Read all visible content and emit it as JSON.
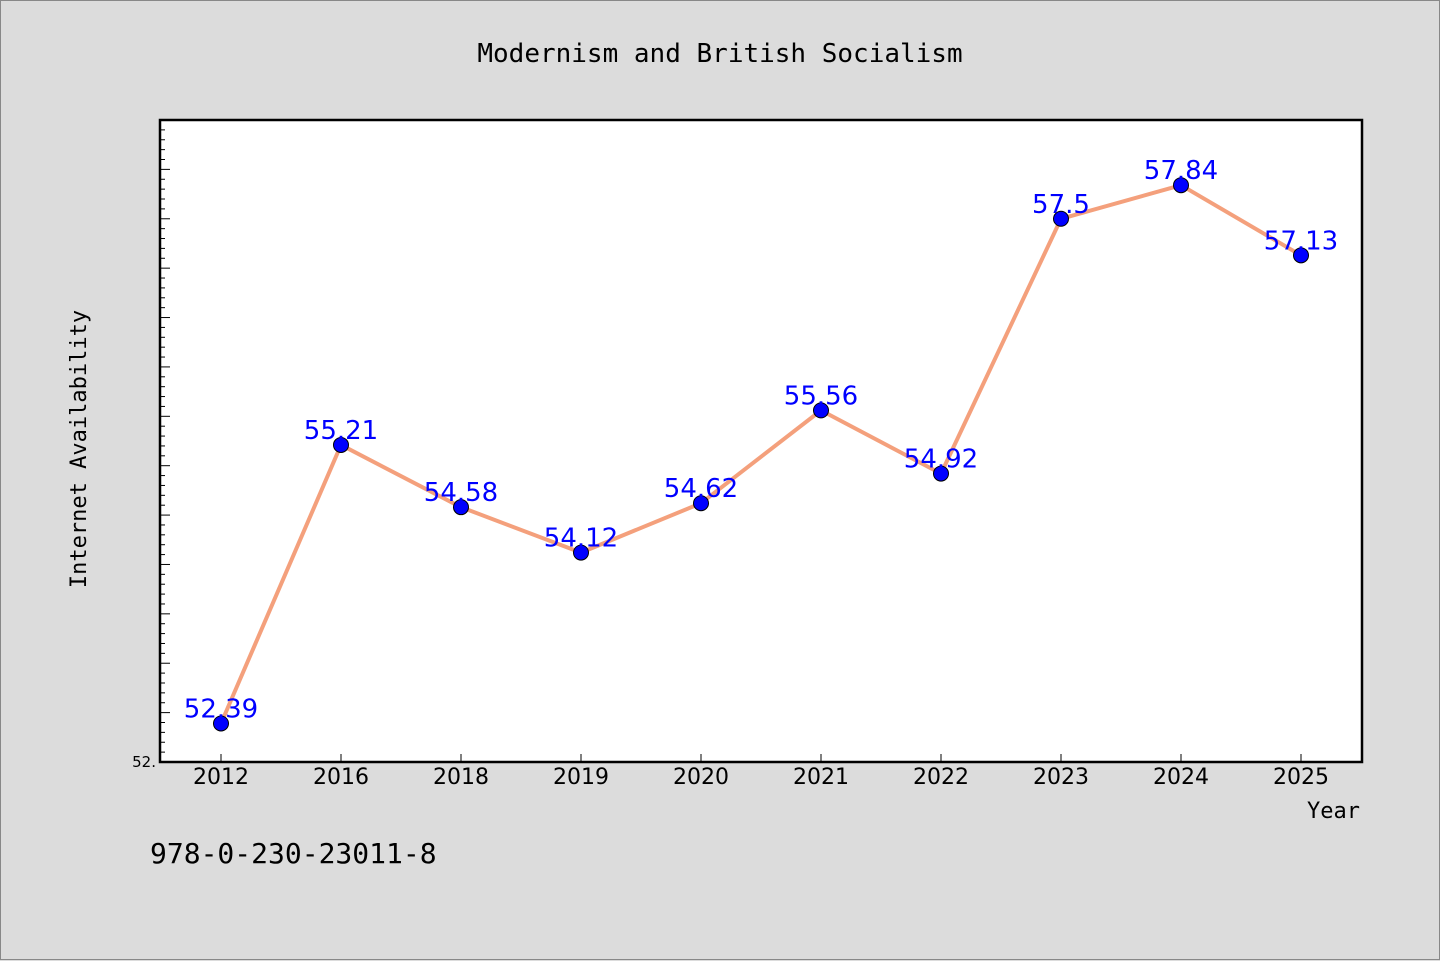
{
  "chart_data": {
    "type": "line",
    "title": "Modernism and British Socialism",
    "xlabel": "Year",
    "ylabel": "Internet Availability",
    "categories": [
      "2012",
      "2016",
      "2018",
      "2019",
      "2020",
      "2021",
      "2022",
      "2023",
      "2024",
      "2025"
    ],
    "series": [
      {
        "values": [
          52.39,
          55.21,
          54.58,
          54.12,
          54.62,
          55.56,
          54.92,
          57.5,
          57.84,
          57.13
        ],
        "labels": [
          "52.39",
          "55.21",
          "54.58",
          "54.12",
          "54.62",
          "55.56",
          "54.92",
          "57.5",
          "57.84",
          "57.13"
        ]
      }
    ],
    "ylim": [
      52.0,
      58.5
    ],
    "y_tick_label": "52.",
    "line_color": "#f4a07c",
    "marker_color": "#0000ff",
    "label_color": "#0000ff",
    "grid": false,
    "legend": "none"
  },
  "footer": {
    "isbn": "978-0-230-23011-8"
  }
}
